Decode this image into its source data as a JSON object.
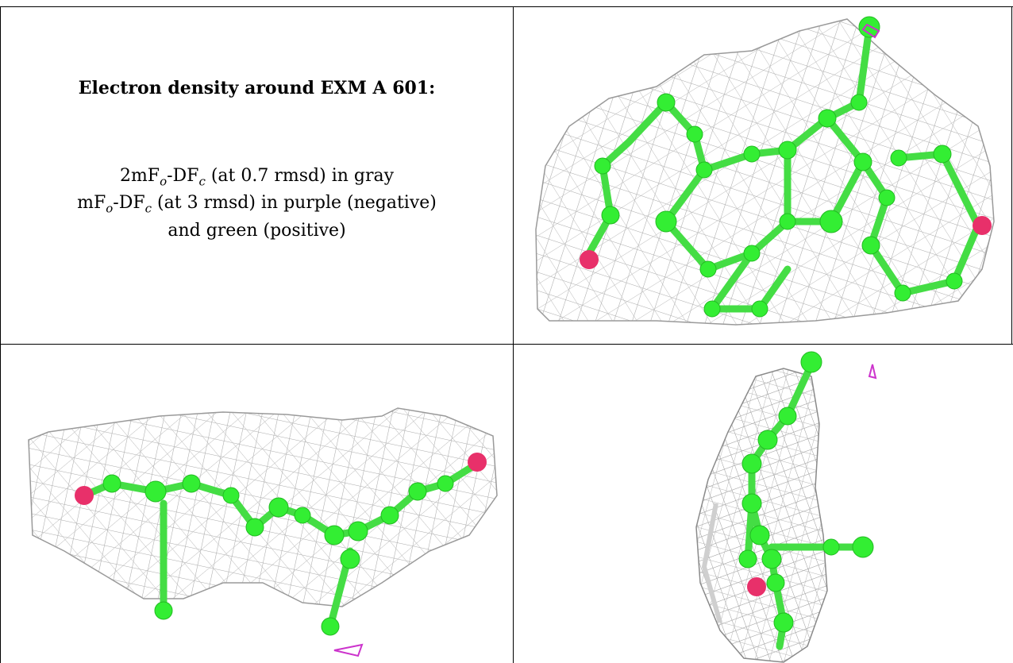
{
  "figure": {
    "title": "Electron density around EXM A 601:",
    "line1": {
      "pre": "2mF",
      "sub1": "o",
      "mid": "-DF",
      "sub2": "c",
      "post": " (at 0.7 rmsd) in gray"
    },
    "line2": {
      "pre": "mF",
      "sub1": "o",
      "mid": "-DF",
      "sub2": "c",
      "post": " (at 3 rmsd) in purple (negative)"
    },
    "line3": "and green (positive)",
    "colors": {
      "mesh": "#a9a9a9",
      "carbon": "#33ee33",
      "oxygen": "#e8306a",
      "negative_density": "#cc33cc",
      "border": "#000000"
    },
    "panels": [
      {
        "view": "top",
        "description_icon": "molecule-mesh"
      },
      {
        "view": "side",
        "description_icon": "molecule-mesh"
      },
      {
        "view": "end",
        "description_icon": "molecule-mesh"
      }
    ]
  }
}
